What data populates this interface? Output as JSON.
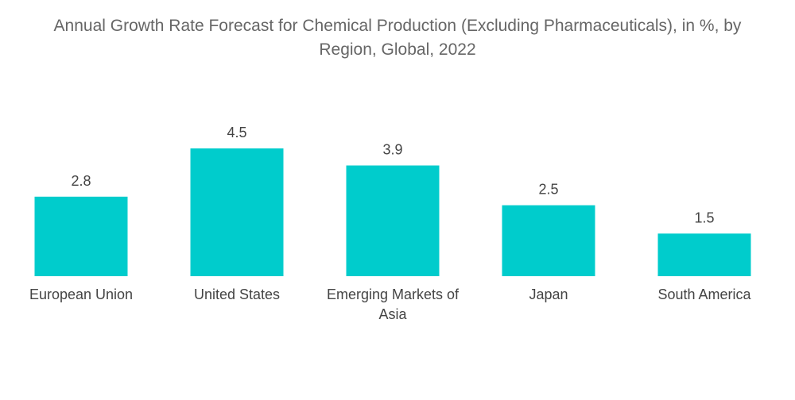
{
  "chart_data": {
    "type": "bar",
    "title": "Annual Growth Rate Forecast for Chemical Production (Excluding Pharmaceuticals), in %, by Region, Global, 2022",
    "title_lines": [
      "Annual Growth Rate Forecast for Chemical Production (Excluding Pharmaceuticals), in %, by",
      "Region, Global, 2022"
    ],
    "categories": [
      "European Union",
      "United States",
      "Emerging Markets of Asia",
      "Japan",
      "South America"
    ],
    "category_lines": [
      [
        "European Union"
      ],
      [
        "United States"
      ],
      [
        "Emerging Markets of",
        "Asia"
      ],
      [
        "Japan"
      ],
      [
        "South America"
      ]
    ],
    "values": [
      2.8,
      4.5,
      3.9,
      2.5,
      1.5
    ],
    "value_labels": [
      "2.8",
      "4.5",
      "3.9",
      "2.5",
      "1.5"
    ],
    "xlabel": "",
    "ylabel": "",
    "ylim": [
      0,
      4.5
    ],
    "grid": false,
    "colors": {
      "bar": "#00CCCC"
    }
  }
}
